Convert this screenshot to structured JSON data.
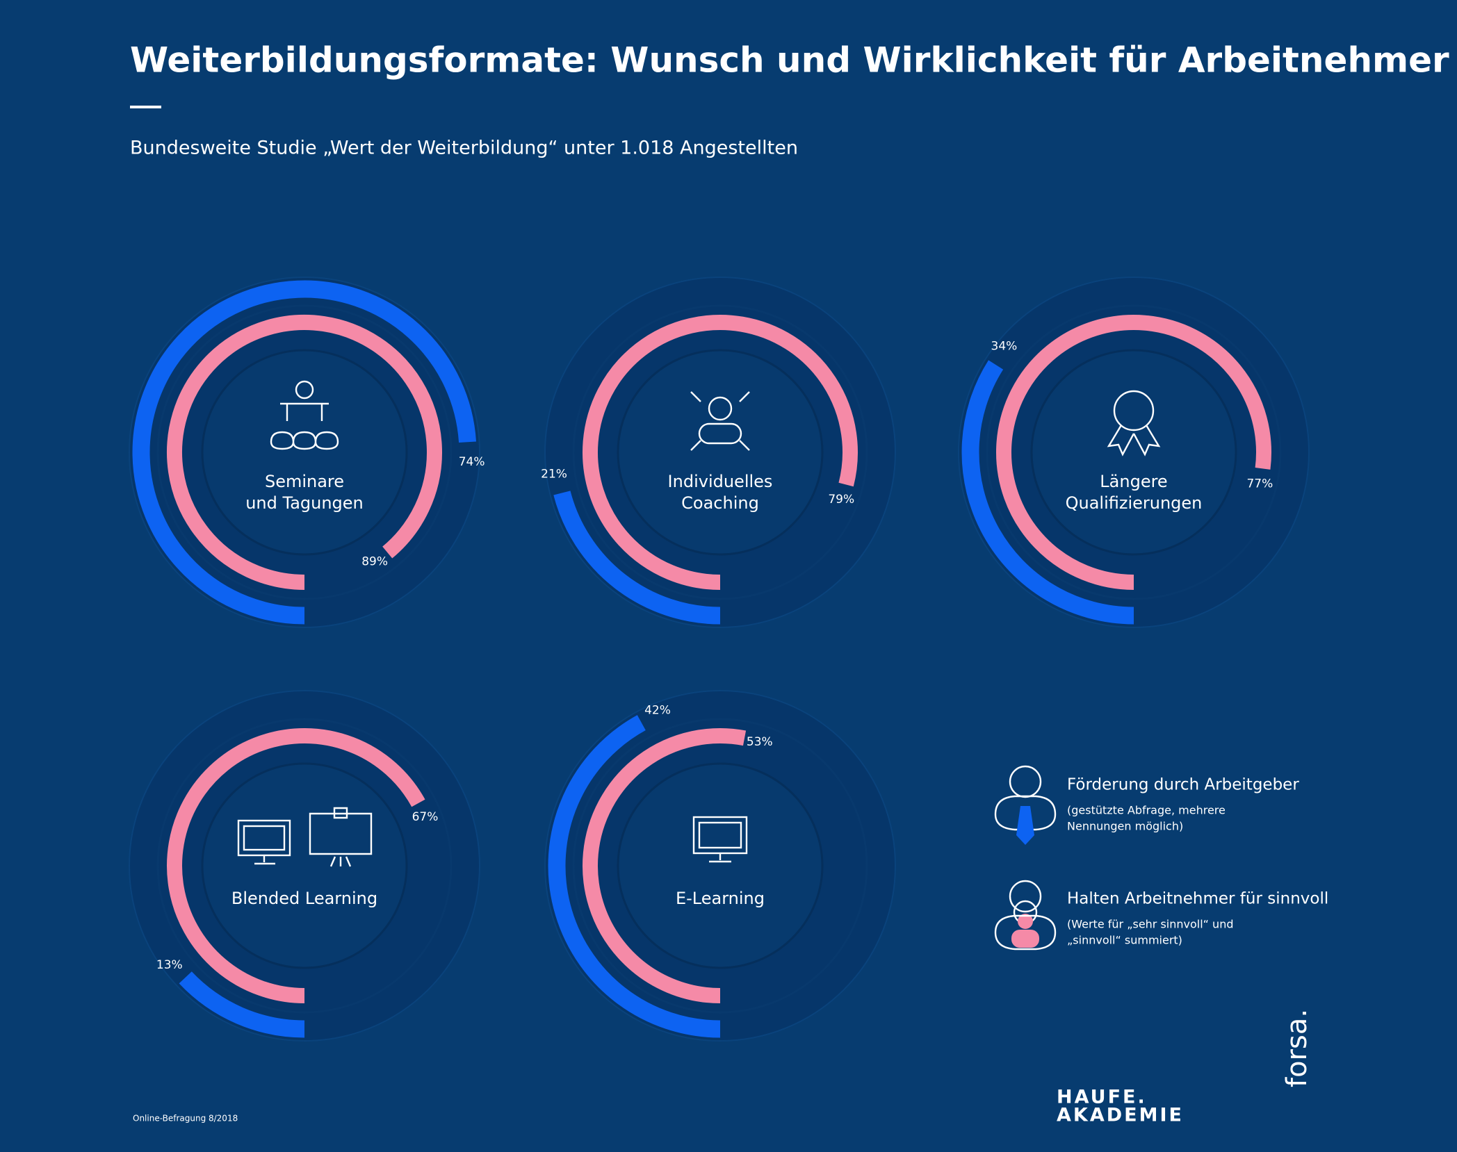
{
  "header": {
    "title": "Weiterbildungsformate: Wunsch und Wirklichkeit für Arbeitnehmer",
    "subtitle": "Bundesweite Studie „Wert der Weiterbildung“ unter 1.018 Angestellten"
  },
  "legend": {
    "entries": [
      {
        "name": "Förderung durch Arbeitgeber",
        "color": "#0d63f2",
        "note_lines": [
          "(gestützte Abfrage, mehrere",
          "Nennungen möglich)"
        ]
      },
      {
        "name": "Halten Arbeitnehmer für sinnvoll",
        "color": "#f58aa7",
        "note_lines": [
          "(Werte für „sehr sinnvoll“ und",
          "„sinnvoll“ summiert)"
        ]
      }
    ]
  },
  "chart_data": [
    {
      "type": "radial",
      "title_lines": [
        "Seminare",
        "und Tagungen"
      ],
      "series": [
        {
          "values": [
            74
          ],
          "value_labels": [
            "74%"
          ]
        },
        {
          "values": [
            89
          ],
          "value_labels": [
            "89%"
          ]
        }
      ]
    },
    {
      "type": "radial",
      "title_lines": [
        "Individuelles",
        "Coaching"
      ],
      "series": [
        {
          "values": [
            21
          ],
          "value_labels": [
            "21%"
          ]
        },
        {
          "values": [
            79
          ],
          "value_labels": [
            "79%"
          ]
        }
      ]
    },
    {
      "type": "radial",
      "title_lines": [
        "Längere",
        "Qualifizierungen"
      ],
      "series": [
        {
          "values": [
            34
          ],
          "value_labels": [
            "34%"
          ]
        },
        {
          "values": [
            77
          ],
          "value_labels": [
            "77%"
          ]
        }
      ]
    },
    {
      "type": "radial",
      "title_lines": [
        "Blended Learning"
      ],
      "series": [
        {
          "values": [
            13
          ],
          "value_labels": [
            "13%"
          ]
        },
        {
          "values": [
            67
          ],
          "value_labels": [
            "67%"
          ]
        }
      ]
    },
    {
      "type": "radial",
      "title_lines": [
        "E-Learning"
      ],
      "series": [
        {
          "values": [
            42
          ],
          "value_labels": [
            "42%"
          ]
        },
        {
          "values": [
            53
          ],
          "value_labels": [
            "53%"
          ]
        }
      ]
    }
  ],
  "footer": {
    "source": "Online-Befragung 8/2018",
    "logo_lines": [
      "HAUFE.",
      "AKADEMIE"
    ],
    "partner": "forsa."
  }
}
